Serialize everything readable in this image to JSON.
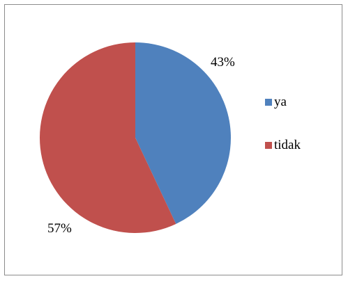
{
  "chart_data": {
    "type": "pie",
    "categories": [
      "ya",
      "tidak"
    ],
    "values": [
      43,
      57
    ],
    "data_labels": [
      "43%",
      "57%"
    ],
    "colors": [
      "#4f81bd",
      "#c0504d"
    ],
    "legend_position": "right",
    "title": ""
  }
}
